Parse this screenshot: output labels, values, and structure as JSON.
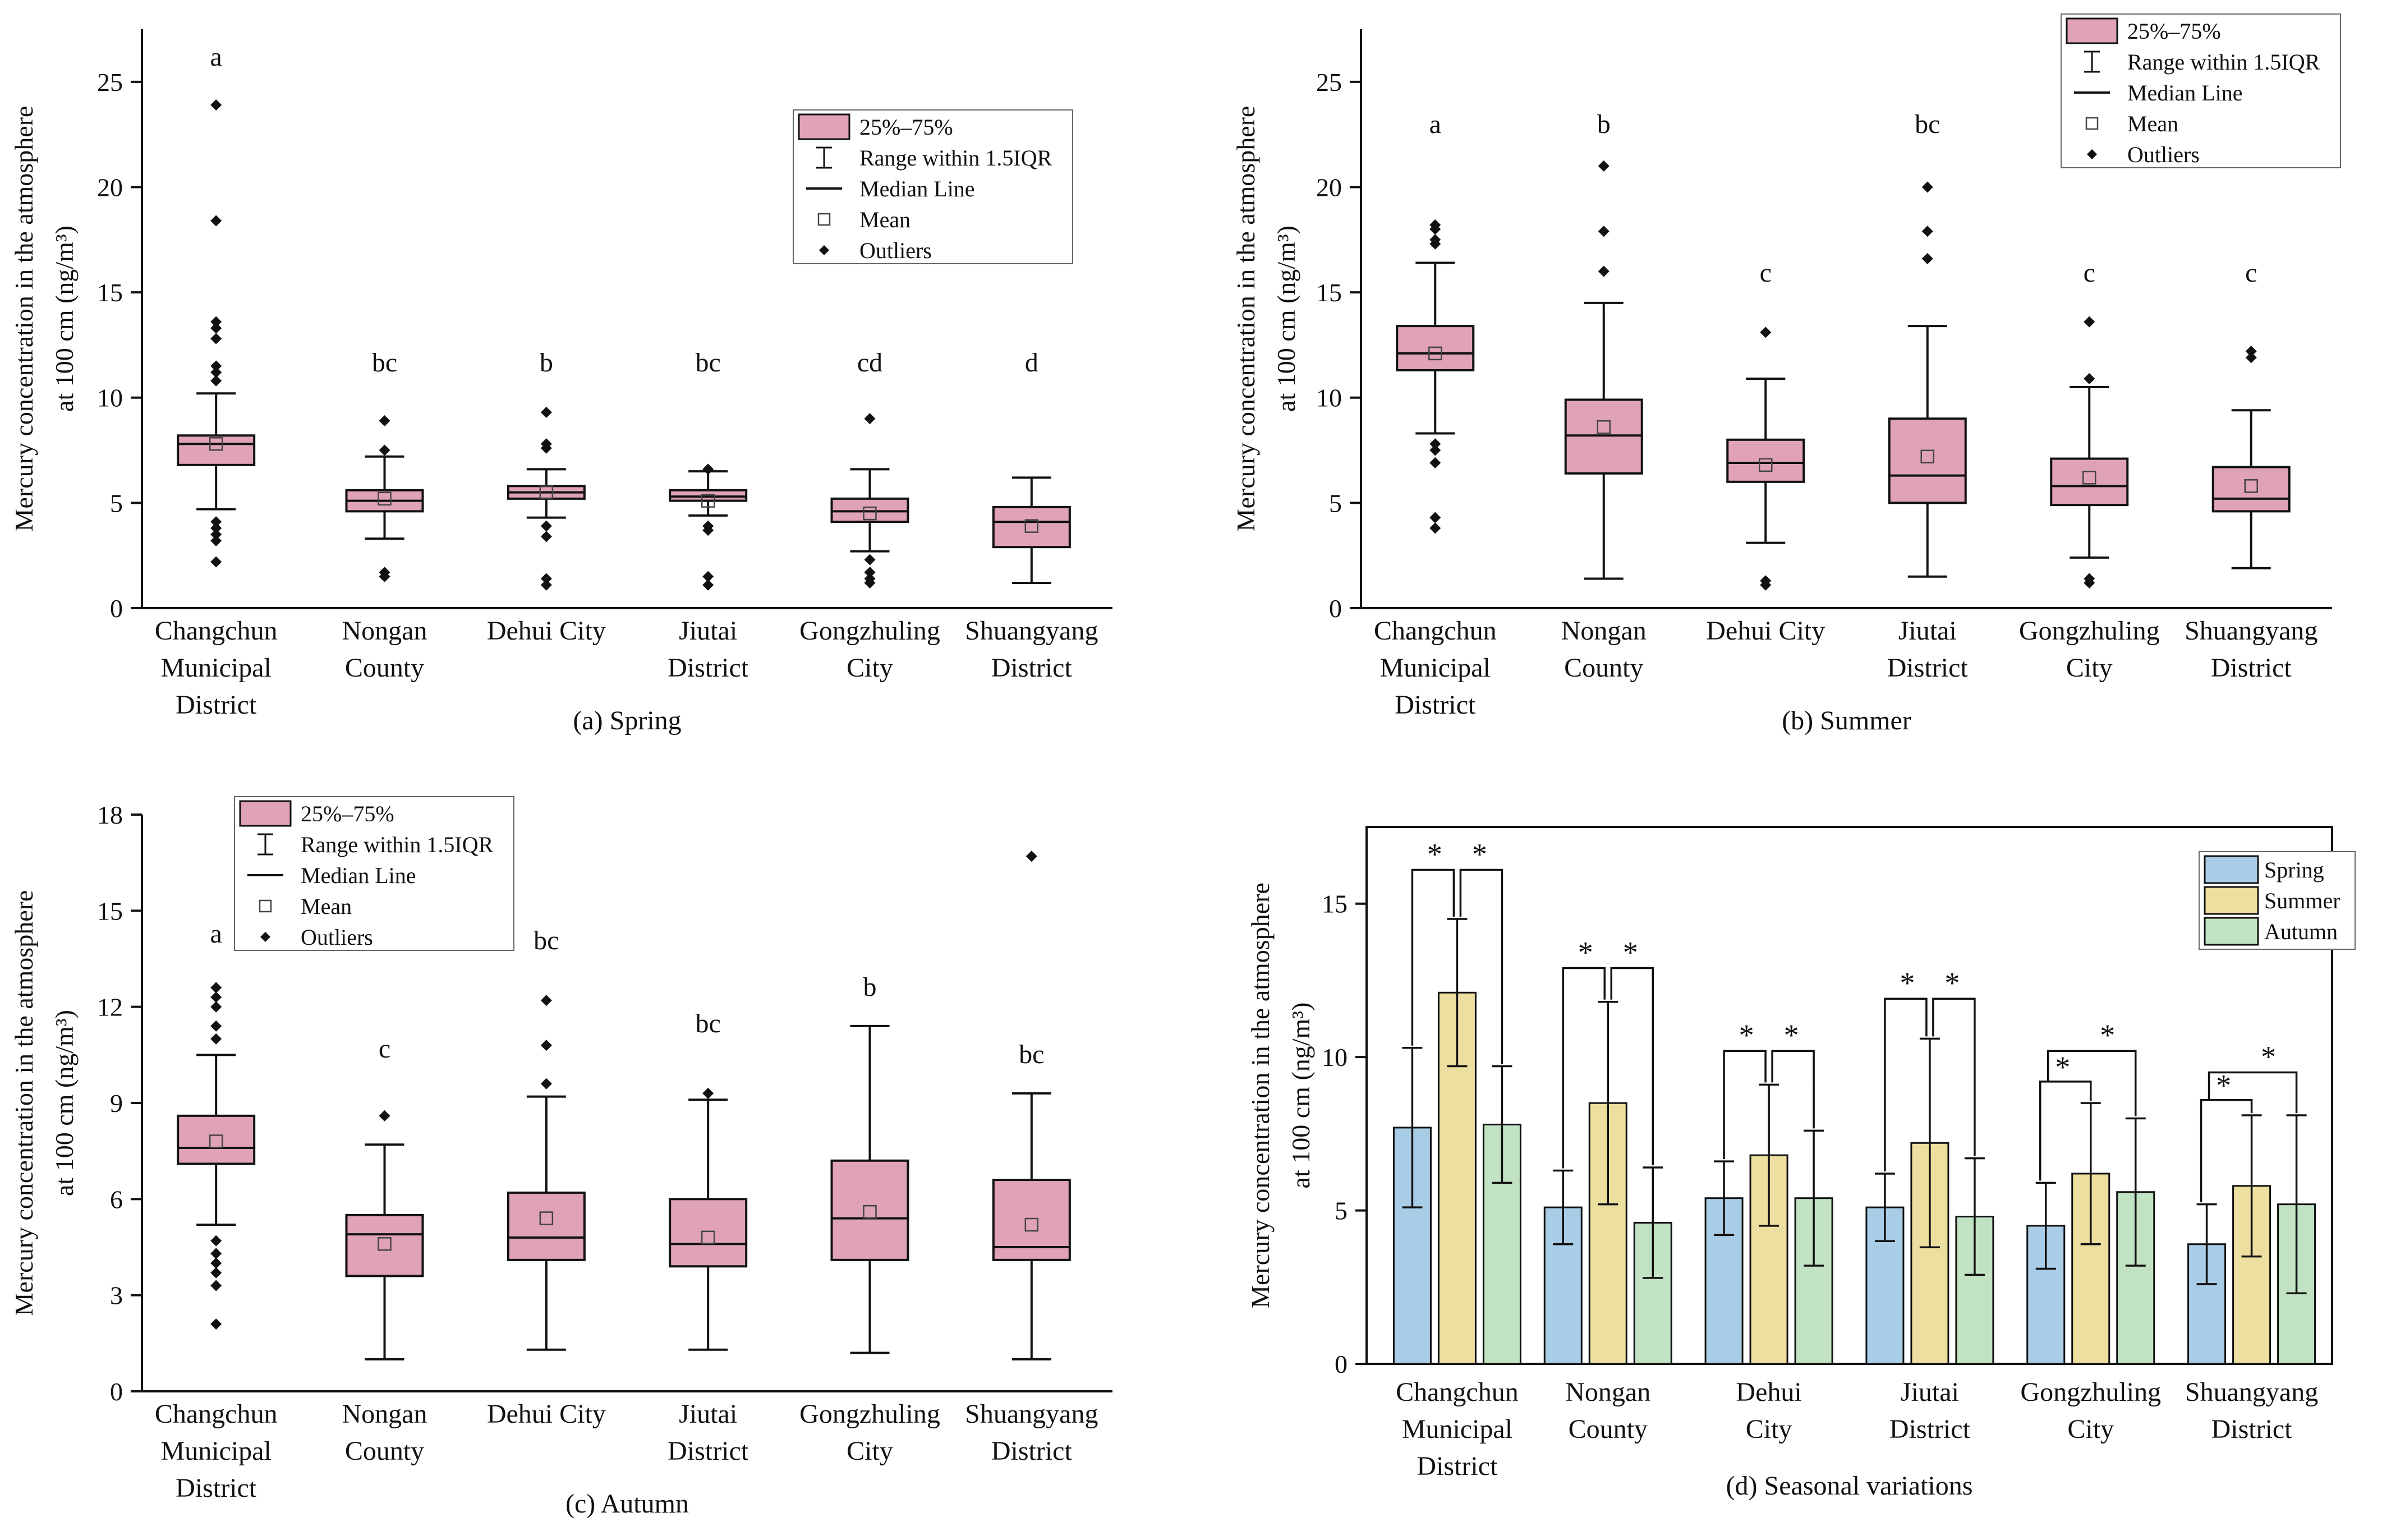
{
  "y_axis_label": [
    "Mercury concentration in the atmosphere",
    "at 100 cm (ng/m³)"
  ],
  "legend_box": {
    "iqr": "25%–75%",
    "range": "Range within 1.5IQR",
    "median": "Median Line",
    "mean": "Mean",
    "outliers": "Outliers"
  },
  "legend_bar": [
    "Spring",
    "Summer",
    "Autumn"
  ],
  "colors": {
    "box_fill": "#e0a2b8",
    "spring": "#a9cde6",
    "summer": "#ecdf9f",
    "autumn": "#c2e3c3",
    "ink": "#111111"
  },
  "chart_data": [
    {
      "type": "boxplot",
      "panel": "spring",
      "title": "(a) Spring",
      "ylabel": "Mercury concentration in the atmosphere at 100 cm (ng/m³)",
      "ylim": [
        0,
        27.5
      ],
      "yticks": [
        0,
        5,
        10,
        15,
        20,
        25
      ],
      "categories": [
        [
          "Changchun",
          "Municipal",
          "District"
        ],
        [
          "Nongan",
          "County"
        ],
        [
          "Dehui City"
        ],
        [
          "Jiutai",
          "District"
        ],
        [
          "Gongzhuling",
          "City"
        ],
        [
          "Shuangyang",
          "District"
        ]
      ],
      "boxes": [
        {
          "letter": "a",
          "whisker_low": 4.7,
          "q1": 6.8,
          "median": 7.8,
          "q3": 8.2,
          "whisker_high": 10.2,
          "mean": 7.8,
          "outliers": [
            2.2,
            3.2,
            3.5,
            3.8,
            4.1,
            10.8,
            11.2,
            11.5,
            12.8,
            13.3,
            13.6,
            18.4,
            23.9
          ]
        },
        {
          "letter": "bc",
          "whisker_low": 3.3,
          "q1": 4.6,
          "median": 5.1,
          "q3": 5.6,
          "whisker_high": 7.2,
          "mean": 5.2,
          "outliers": [
            1.5,
            1.7,
            7.5,
            8.9
          ]
        },
        {
          "letter": "b",
          "whisker_low": 4.3,
          "q1": 5.2,
          "median": 5.5,
          "q3": 5.8,
          "whisker_high": 6.6,
          "mean": 5.5,
          "outliers": [
            1.1,
            1.4,
            3.4,
            3.9,
            7.6,
            7.8,
            9.3
          ]
        },
        {
          "letter": "bc",
          "whisker_low": 4.4,
          "q1": 5.1,
          "median": 5.3,
          "q3": 5.6,
          "whisker_high": 6.5,
          "mean": 5.1,
          "outliers": [
            1.1,
            1.5,
            3.7,
            3.9,
            6.6
          ]
        },
        {
          "letter": "cd",
          "whisker_low": 2.7,
          "q1": 4.1,
          "median": 4.6,
          "q3": 5.2,
          "whisker_high": 6.6,
          "mean": 4.5,
          "outliers": [
            1.2,
            1.4,
            1.7,
            2.3,
            9.0
          ]
        },
        {
          "letter": "d",
          "whisker_low": 1.2,
          "q1": 2.9,
          "median": 4.1,
          "q3": 4.8,
          "whisker_high": 6.2,
          "mean": 3.9,
          "outliers": []
        }
      ]
    },
    {
      "type": "boxplot",
      "panel": "summer",
      "title": "(b) Summer",
      "ylabel": "Mercury concentration in the atmosphere at 100 cm (ng/m³)",
      "ylim": [
        0,
        27.5
      ],
      "yticks": [
        0,
        5,
        10,
        15,
        20,
        25
      ],
      "categories": [
        [
          "Changchun",
          "Municipal",
          "District"
        ],
        [
          "Nongan",
          "County"
        ],
        [
          "Dehui City"
        ],
        [
          "Jiutai",
          "District"
        ],
        [
          "Gongzhuling",
          "City"
        ],
        [
          "Shuangyang",
          "District"
        ]
      ],
      "boxes": [
        {
          "letter": "a",
          "whisker_low": 8.3,
          "q1": 11.3,
          "median": 12.1,
          "q3": 13.4,
          "whisker_high": 16.4,
          "mean": 12.1,
          "outliers": [
            3.8,
            4.3,
            6.9,
            7.5,
            7.8,
            17.3,
            17.5,
            18.0,
            18.2
          ]
        },
        {
          "letter": "b",
          "whisker_low": 1.4,
          "q1": 6.4,
          "median": 8.2,
          "q3": 9.9,
          "whisker_high": 14.5,
          "mean": 8.6,
          "outliers": [
            16.0,
            17.9,
            21.0
          ]
        },
        {
          "letter": "c",
          "whisker_low": 3.1,
          "q1": 6.0,
          "median": 6.9,
          "q3": 8.0,
          "whisker_high": 10.9,
          "mean": 6.8,
          "outliers": [
            1.1,
            1.3,
            13.1
          ]
        },
        {
          "letter": "bc",
          "whisker_low": 1.5,
          "q1": 5.0,
          "median": 6.3,
          "q3": 9.0,
          "whisker_high": 13.4,
          "mean": 7.2,
          "outliers": [
            16.6,
            17.9,
            20.0
          ]
        },
        {
          "letter": "c",
          "whisker_low": 2.4,
          "q1": 4.9,
          "median": 5.8,
          "q3": 7.1,
          "whisker_high": 10.5,
          "mean": 6.2,
          "outliers": [
            1.2,
            1.4,
            10.9,
            13.6
          ]
        },
        {
          "letter": "c",
          "whisker_low": 1.9,
          "q1": 4.6,
          "median": 5.2,
          "q3": 6.7,
          "whisker_high": 9.4,
          "mean": 5.8,
          "outliers": [
            11.9,
            12.2
          ]
        }
      ]
    },
    {
      "type": "boxplot",
      "panel": "autumn",
      "title": "(c) Autumn",
      "ylabel": "Mercury concentration in the atmosphere at 100 cm (ng/m³)",
      "ylim": [
        0,
        18
      ],
      "yticks": [
        0,
        3,
        6,
        9,
        12,
        15,
        18
      ],
      "categories": [
        [
          "Changchun",
          "Municipal",
          "District"
        ],
        [
          "Nongan",
          "County"
        ],
        [
          "Dehui City"
        ],
        [
          "Jiutai",
          "District"
        ],
        [
          "Gongzhuling",
          "City"
        ],
        [
          "Shuangyang",
          "District"
        ]
      ],
      "boxes": [
        {
          "letter": "a",
          "whisker_low": 5.2,
          "q1": 7.1,
          "median": 7.6,
          "q3": 8.6,
          "whisker_high": 10.5,
          "mean": 7.8,
          "outliers": [
            2.1,
            3.3,
            3.7,
            4.0,
            4.3,
            4.7,
            11.0,
            11.4,
            12.0,
            12.3,
            12.6
          ]
        },
        {
          "letter": "c",
          "whisker_low": 1.0,
          "q1": 3.6,
          "median": 4.9,
          "q3": 5.5,
          "whisker_high": 7.7,
          "mean": 4.6,
          "outliers": [
            8.6
          ]
        },
        {
          "letter": "bc",
          "whisker_low": 1.3,
          "q1": 4.1,
          "median": 4.8,
          "q3": 6.2,
          "whisker_high": 9.2,
          "mean": 5.4,
          "outliers": [
            9.6,
            10.8,
            12.2
          ]
        },
        {
          "letter": "bc",
          "whisker_low": 1.3,
          "q1": 3.9,
          "median": 4.6,
          "q3": 6.0,
          "whisker_high": 9.1,
          "mean": 4.8,
          "outliers": [
            9.3
          ]
        },
        {
          "letter": "b",
          "whisker_low": 1.2,
          "q1": 4.1,
          "median": 5.4,
          "q3": 7.2,
          "whisker_high": 11.4,
          "mean": 5.6,
          "outliers": []
        },
        {
          "letter": "bc",
          "whisker_low": 1.0,
          "q1": 4.1,
          "median": 4.5,
          "q3": 6.6,
          "whisker_high": 9.3,
          "mean": 5.2,
          "outliers": [
            16.7
          ]
        }
      ]
    },
    {
      "type": "bar",
      "panel": "seasonal",
      "title": "(d) Seasonal variations",
      "ylabel": "Mercury concentration in the atmosphere at 100 cm (ng/m³)",
      "ylim": [
        0,
        17.5
      ],
      "yticks": [
        0,
        5,
        10,
        15
      ],
      "categories": [
        [
          "Changchun",
          "Municipal",
          "District"
        ],
        [
          "Nongan",
          "County"
        ],
        [
          "Dehui",
          "City"
        ],
        [
          "Jiutai",
          "District"
        ],
        [
          "Gongzhuling",
          "City"
        ],
        [
          "Shuangyang",
          "District"
        ]
      ],
      "series": [
        {
          "name": "Spring",
          "values": [
            7.7,
            5.1,
            5.4,
            5.1,
            4.5,
            3.9
          ],
          "error": [
            2.6,
            1.2,
            1.2,
            1.1,
            1.4,
            1.3
          ]
        },
        {
          "name": "Summer",
          "values": [
            12.1,
            8.5,
            6.8,
            7.2,
            6.2,
            5.8
          ],
          "error": [
            2.4,
            3.3,
            2.3,
            3.4,
            2.3,
            2.3
          ]
        },
        {
          "name": "Autumn",
          "values": [
            7.8,
            4.6,
            5.4,
            4.8,
            5.6,
            5.2
          ],
          "error": [
            1.9,
            1.8,
            2.2,
            1.9,
            2.4,
            2.9
          ]
        }
      ],
      "significance": [
        {
          "pairs": [
            [
              "Spring",
              "Summer"
            ],
            [
              "Summer",
              "Autumn"
            ]
          ],
          "label": "*",
          "style": "adjacent",
          "bracket_y": 16.1
        },
        {
          "pairs": [
            [
              "Spring",
              "Summer"
            ],
            [
              "Summer",
              "Autumn"
            ]
          ],
          "label": "*",
          "style": "adjacent",
          "bracket_y": 12.9
        },
        {
          "pairs": [
            [
              "Spring",
              "Summer"
            ],
            [
              "Summer",
              "Autumn"
            ]
          ],
          "label": "*",
          "style": "adjacent",
          "bracket_y": 10.2
        },
        {
          "pairs": [
            [
              "Spring",
              "Summer"
            ],
            [
              "Summer",
              "Autumn"
            ]
          ],
          "label": "*",
          "style": "adjacent",
          "bracket_y": 11.9
        },
        {
          "pairs": [
            [
              "Spring",
              "Summer"
            ],
            [
              "Spring",
              "Autumn"
            ]
          ],
          "label": "*",
          "style": "nested",
          "bracket_y": [
            9.2,
            10.2
          ]
        },
        {
          "pairs": [
            [
              "Spring",
              "Summer"
            ],
            [
              "Spring",
              "Autumn"
            ]
          ],
          "label": "*",
          "style": "nested",
          "bracket_y": [
            8.6,
            9.5
          ]
        }
      ]
    }
  ]
}
